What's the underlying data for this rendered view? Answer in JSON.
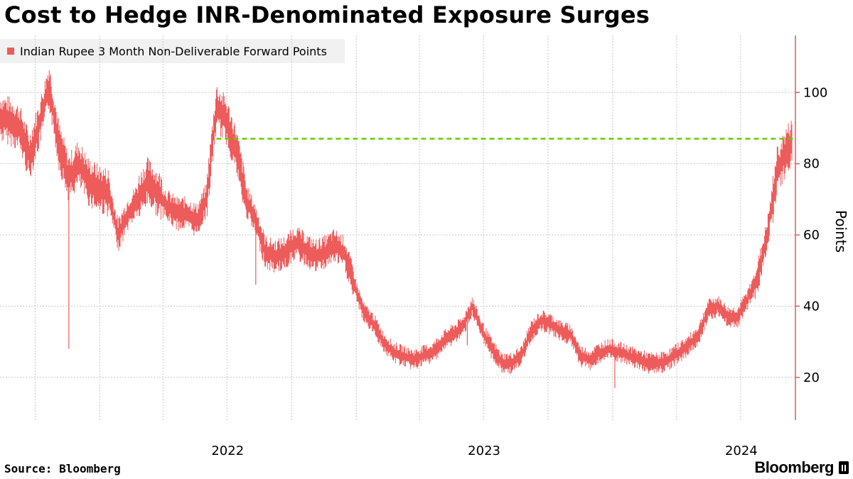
{
  "title": "Cost to Hedge INR-Denominated Exposure Surges",
  "source": "Source: Bloomberg",
  "brand": "Bloomberg",
  "colors": {
    "series": "#ee5b5b",
    "axis": "#e85757",
    "reference": "#66cc00",
    "grid": "#c8c8c8"
  },
  "chart_data": {
    "type": "line",
    "xlabel": "",
    "ylabel": "Points",
    "ylim": [
      8,
      116
    ],
    "xlim": [
      "2021-08-12",
      "2024-09-16"
    ],
    "x_ticks": [
      "2022",
      "2023",
      "2024"
    ],
    "y_ticks": [
      "20",
      "40",
      "60",
      "80",
      "100"
    ],
    "grid": true,
    "legend_position": "top-left",
    "series": [
      {
        "name": "Indian Rupee 3 Month Non-Deliverable Forward Points",
        "x": [
          "2021-08-12",
          "2021-08-26",
          "2021-09-09",
          "2021-09-23",
          "2021-10-07",
          "2021-10-21",
          "2021-11-04",
          "2021-11-18",
          "2021-12-02",
          "2021-12-16",
          "2021-12-30",
          "2022-01-13",
          "2022-01-27",
          "2022-02-10",
          "2022-02-24",
          "2022-03-10",
          "2022-03-24",
          "2022-04-07",
          "2022-04-21",
          "2022-05-05",
          "2022-05-19",
          "2022-06-02",
          "2022-06-16",
          "2022-06-30",
          "2022-07-14",
          "2022-07-28",
          "2022-08-11",
          "2022-08-25",
          "2022-09-08",
          "2022-09-22",
          "2022-10-06",
          "2022-10-20",
          "2022-11-03",
          "2022-11-17",
          "2022-12-01",
          "2022-12-15",
          "2022-12-29",
          "2023-01-12",
          "2023-01-26",
          "2023-02-09",
          "2023-02-23",
          "2023-03-09",
          "2023-03-23",
          "2023-04-06",
          "2023-04-20",
          "2023-05-04",
          "2023-05-18",
          "2023-06-01",
          "2023-06-15",
          "2023-06-29",
          "2023-07-13",
          "2023-07-27",
          "2023-08-10",
          "2023-08-24",
          "2023-09-07",
          "2023-09-21",
          "2023-10-05",
          "2023-10-19",
          "2023-11-02",
          "2023-11-16",
          "2023-11-30",
          "2023-12-14",
          "2023-12-28",
          "2024-01-11",
          "2024-01-25",
          "2024-02-08",
          "2024-02-22",
          "2024-03-07",
          "2024-03-21",
          "2024-04-04",
          "2024-04-18",
          "2024-05-02",
          "2024-05-16",
          "2024-05-30",
          "2024-06-13",
          "2024-06-27",
          "2024-07-11",
          "2024-07-25",
          "2024-08-08",
          "2024-08-22",
          "2024-09-05",
          "2024-09-12"
        ],
        "values": [
          93,
          92,
          90,
          82,
          91,
          102,
          85,
          76,
          80,
          75,
          73,
          72,
          60,
          66,
          70,
          75,
          72,
          68,
          66,
          66,
          64,
          70,
          96,
          92,
          84,
          70,
          64,
          55,
          54,
          55,
          58,
          56,
          54,
          55,
          57,
          55,
          46,
          38,
          35,
          30,
          27,
          26,
          25,
          26,
          27,
          30,
          32,
          34,
          40,
          33,
          28,
          24,
          24,
          26,
          33,
          36,
          35,
          33,
          32,
          26,
          25,
          27,
          28,
          27,
          26,
          25,
          24,
          24,
          25,
          27,
          29,
          32,
          39,
          40,
          37,
          37,
          42,
          48,
          60,
          78,
          84,
          86
        ]
      }
    ],
    "reference_line": {
      "value": 87,
      "x_start": "2022-06-16",
      "x_end": "2024-09-16"
    },
    "spikes": [
      {
        "x": "2021-11-18",
        "value": 28
      },
      {
        "x": "2022-08-11",
        "value": 46
      },
      {
        "x": "2023-06-08",
        "value": 29
      },
      {
        "x": "2024-01-04",
        "value": 17
      }
    ]
  }
}
